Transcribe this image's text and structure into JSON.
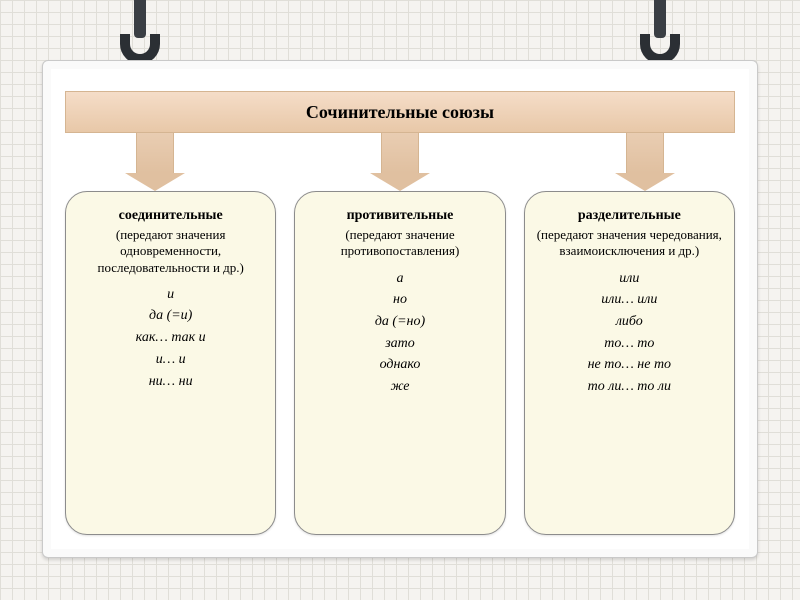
{
  "banner": {
    "title": "Сочинительные союзы",
    "fontsize": 18
  },
  "colors": {
    "page_bg": "#f5f3f0",
    "grid": "#e0ded8",
    "board_bg": "#ffffff",
    "board_border": "#c9c9c9",
    "banner_top": "#f5ddc8",
    "banner_bottom": "#e8c8a8",
    "banner_border": "#d5b592",
    "arrow_fill": "#e0c0a0",
    "card_bg": "#fbf9e6",
    "card_border": "#8c8c8c",
    "ring": "#2b2f34",
    "strap": "#3a3e44"
  },
  "typography": {
    "banner_fontsize": 18,
    "title_fontsize": 14,
    "sub_fontsize": 13,
    "item_fontsize": 14
  },
  "layout": {
    "board_radius": 6,
    "card_radius": 22,
    "card_gap": 18,
    "banner_height": 42,
    "arrow_drop": 58
  },
  "cards": [
    {
      "title": "соединительные",
      "sub": "(передают значения одновременности, последовательности и др.)",
      "items": [
        "и",
        "да (=и)",
        "как… так и",
        "и… и",
        "ни… ни"
      ]
    },
    {
      "title": "противительные",
      "sub": "(передают значение противопоставления)",
      "items": [
        "а",
        "но",
        "да (=но)",
        "зато",
        "однако",
        "же"
      ]
    },
    {
      "title": "разделительные",
      "sub": "(передают значения чередования, взаимоисключения и др.)",
      "items": [
        "или",
        "или… или",
        "либо",
        "то… то",
        "не то… не то",
        "то ли… то ли"
      ]
    }
  ]
}
